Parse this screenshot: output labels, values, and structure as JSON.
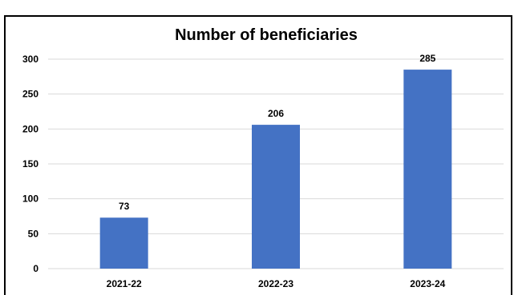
{
  "chart_data": {
    "type": "bar",
    "title": "Number of beneficiaries",
    "categories": [
      "2021-22",
      "2022-23",
      "2023-24"
    ],
    "values": [
      73,
      206,
      285
    ],
    "data_labels": [
      "73",
      "206",
      "285"
    ],
    "ylim": [
      0,
      300
    ],
    "yticks": [
      0,
      50,
      100,
      150,
      200,
      250,
      300
    ],
    "ytick_labels": [
      "0",
      "50",
      "100",
      "150",
      "200",
      "250",
      "300"
    ],
    "xlabel": "",
    "ylabel": "",
    "grid": true,
    "legend": "none",
    "bar_color": "#4472c4"
  }
}
